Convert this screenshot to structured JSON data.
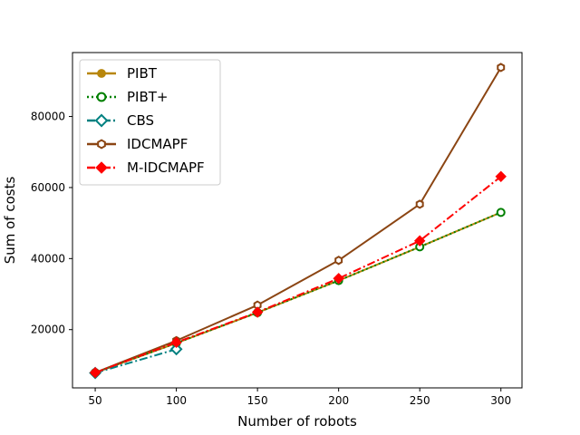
{
  "chart_data": {
    "type": "line",
    "title": "",
    "xlabel": "Number of robots",
    "ylabel": "Sum of costs",
    "x_ticks": [
      "50",
      "100",
      "150",
      "200",
      "250",
      "300"
    ],
    "y_ticks": [
      "20000",
      "40000",
      "60000",
      "80000"
    ],
    "xlim": [
      36,
      313
    ],
    "ylim": [
      3600,
      98000
    ],
    "grid": false,
    "legend_position": "top-left",
    "series": [
      {
        "name": "PIBT",
        "x": [
          50,
          100,
          150,
          200,
          250,
          300
        ],
        "values": [
          7900,
          16200,
          24800,
          33800,
          43300,
          53000
        ],
        "color": "#b8860b",
        "line_style": "solid",
        "marker": "circle-filled"
      },
      {
        "name": "PIBT+",
        "x": [
          50,
          100,
          150,
          200,
          250,
          300
        ],
        "values": [
          7900,
          16200,
          24800,
          33800,
          43300,
          53000
        ],
        "color": "#008000",
        "line_style": "dotted",
        "marker": "circle-open"
      },
      {
        "name": "CBS",
        "x": [
          50,
          100
        ],
        "values": [
          7800,
          14500
        ],
        "color": "#008080",
        "line_style": "dashdot",
        "marker": "diamond-open"
      },
      {
        "name": "IDCMAPF",
        "x": [
          50,
          100,
          150,
          200,
          250,
          300
        ],
        "values": [
          7900,
          16900,
          26900,
          39500,
          55300,
          93800
        ],
        "color": "#8b4513",
        "line_style": "solid",
        "marker": "hexagon-open"
      },
      {
        "name": "M-IDCMAPF",
        "x": [
          50,
          100,
          150,
          200,
          250,
          300
        ],
        "values": [
          7900,
          16400,
          24900,
          34400,
          45000,
          63100
        ],
        "color": "#ff0000",
        "line_style": "dashdot",
        "marker": "diamond-filled"
      }
    ]
  }
}
